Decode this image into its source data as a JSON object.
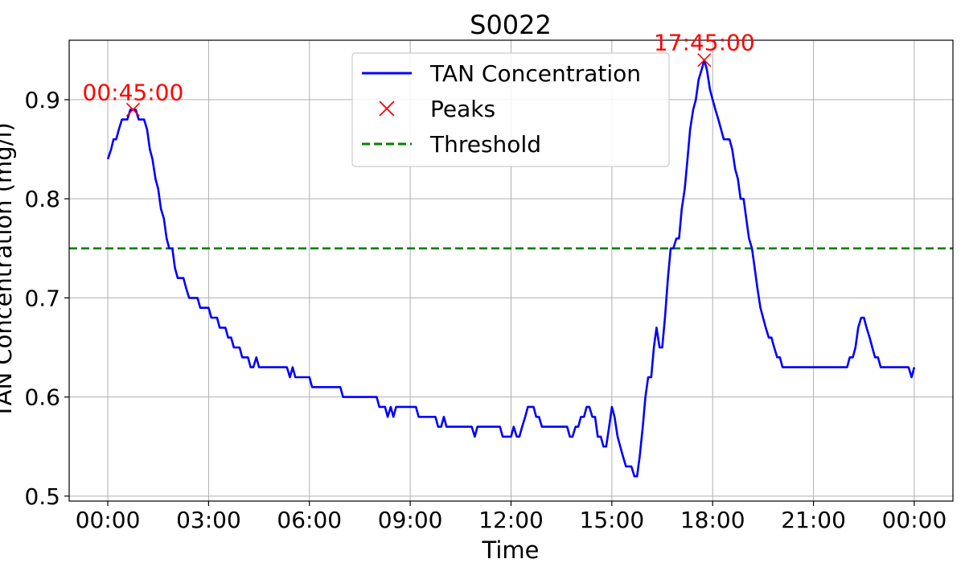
{
  "chart_data": {
    "type": "line",
    "title": "S0022",
    "xlabel": "Time",
    "ylabel": "TAN Concentration (mg/l)",
    "xlim_hours": [
      -1.15,
      25.15
    ],
    "ylim": [
      0.495,
      0.96
    ],
    "x_ticks": [
      {
        "hour": 0,
        "label": "00:00"
      },
      {
        "hour": 3,
        "label": "03:00"
      },
      {
        "hour": 6,
        "label": "06:00"
      },
      {
        "hour": 9,
        "label": "09:00"
      },
      {
        "hour": 12,
        "label": "12:00"
      },
      {
        "hour": 15,
        "label": "15:00"
      },
      {
        "hour": 18,
        "label": "18:00"
      },
      {
        "hour": 21,
        "label": "21:00"
      },
      {
        "hour": 24,
        "label": "00:00"
      }
    ],
    "y_ticks": [
      {
        "value": 0.5,
        "label": "0.5"
      },
      {
        "value": 0.6,
        "label": "0.6"
      },
      {
        "value": 0.7,
        "label": "0.7"
      },
      {
        "value": 0.8,
        "label": "0.8"
      },
      {
        "value": 0.9,
        "label": "0.9"
      }
    ],
    "grid": true,
    "legend": {
      "placement": "upper-center",
      "entries": [
        {
          "label": "TAN Concentration",
          "style": "line",
          "color": "#0000ff"
        },
        {
          "label": "Peaks",
          "style": "x-marker",
          "color": "#ff0000"
        },
        {
          "label": "Threshold",
          "style": "dashed-line",
          "color": "#008000"
        }
      ]
    },
    "series": [
      {
        "name": "TAN Concentration",
        "color": "#0000ff",
        "points": [
          [
            0.0,
            0.84
          ],
          [
            0.1,
            0.85
          ],
          [
            0.17,
            0.86
          ],
          [
            0.25,
            0.86
          ],
          [
            0.33,
            0.87
          ],
          [
            0.42,
            0.88
          ],
          [
            0.58,
            0.88
          ],
          [
            0.67,
            0.89
          ],
          [
            0.83,
            0.89
          ],
          [
            0.92,
            0.88
          ],
          [
            1.08,
            0.88
          ],
          [
            1.17,
            0.87
          ],
          [
            1.25,
            0.85
          ],
          [
            1.33,
            0.84
          ],
          [
            1.42,
            0.82
          ],
          [
            1.5,
            0.81
          ],
          [
            1.58,
            0.79
          ],
          [
            1.67,
            0.78
          ],
          [
            1.75,
            0.76
          ],
          [
            1.83,
            0.75
          ],
          [
            1.92,
            0.75
          ],
          [
            2.0,
            0.73
          ],
          [
            2.08,
            0.72
          ],
          [
            2.25,
            0.72
          ],
          [
            2.33,
            0.71
          ],
          [
            2.42,
            0.7
          ],
          [
            2.67,
            0.7
          ],
          [
            2.75,
            0.69
          ],
          [
            3.0,
            0.69
          ],
          [
            3.08,
            0.68
          ],
          [
            3.25,
            0.68
          ],
          [
            3.33,
            0.67
          ],
          [
            3.5,
            0.67
          ],
          [
            3.58,
            0.66
          ],
          [
            3.67,
            0.66
          ],
          [
            3.75,
            0.65
          ],
          [
            3.92,
            0.65
          ],
          [
            4.0,
            0.64
          ],
          [
            4.17,
            0.64
          ],
          [
            4.25,
            0.63
          ],
          [
            4.33,
            0.63
          ],
          [
            4.42,
            0.64
          ],
          [
            4.5,
            0.63
          ],
          [
            5.33,
            0.63
          ],
          [
            5.42,
            0.62
          ],
          [
            5.5,
            0.63
          ],
          [
            5.58,
            0.62
          ],
          [
            6.0,
            0.62
          ],
          [
            6.08,
            0.61
          ],
          [
            6.92,
            0.61
          ],
          [
            7.0,
            0.6
          ],
          [
            8.0,
            0.6
          ],
          [
            8.08,
            0.59
          ],
          [
            8.25,
            0.59
          ],
          [
            8.33,
            0.58
          ],
          [
            8.42,
            0.59
          ],
          [
            8.5,
            0.58
          ],
          [
            8.58,
            0.59
          ],
          [
            9.17,
            0.59
          ],
          [
            9.25,
            0.58
          ],
          [
            9.75,
            0.58
          ],
          [
            9.83,
            0.57
          ],
          [
            9.92,
            0.57
          ],
          [
            10.0,
            0.58
          ],
          [
            10.08,
            0.57
          ],
          [
            10.83,
            0.57
          ],
          [
            10.92,
            0.56
          ],
          [
            11.0,
            0.57
          ],
          [
            11.67,
            0.57
          ],
          [
            11.75,
            0.56
          ],
          [
            12.0,
            0.56
          ],
          [
            12.08,
            0.57
          ],
          [
            12.17,
            0.56
          ],
          [
            12.25,
            0.56
          ],
          [
            12.33,
            0.57
          ],
          [
            12.42,
            0.58
          ],
          [
            12.5,
            0.59
          ],
          [
            12.67,
            0.59
          ],
          [
            12.75,
            0.58
          ],
          [
            12.83,
            0.58
          ],
          [
            12.92,
            0.57
          ],
          [
            13.67,
            0.57
          ],
          [
            13.75,
            0.56
          ],
          [
            13.83,
            0.56
          ],
          [
            13.92,
            0.57
          ],
          [
            14.0,
            0.57
          ],
          [
            14.08,
            0.58
          ],
          [
            14.17,
            0.58
          ],
          [
            14.25,
            0.59
          ],
          [
            14.33,
            0.59
          ],
          [
            14.42,
            0.58
          ],
          [
            14.5,
            0.58
          ],
          [
            14.58,
            0.56
          ],
          [
            14.67,
            0.56
          ],
          [
            14.75,
            0.55
          ],
          [
            14.83,
            0.55
          ],
          [
            14.92,
            0.57
          ],
          [
            15.0,
            0.59
          ],
          [
            15.08,
            0.58
          ],
          [
            15.17,
            0.56
          ],
          [
            15.25,
            0.55
          ],
          [
            15.33,
            0.54
          ],
          [
            15.42,
            0.53
          ],
          [
            15.58,
            0.53
          ],
          [
            15.67,
            0.52
          ],
          [
            15.75,
            0.52
          ],
          [
            15.83,
            0.54
          ],
          [
            15.92,
            0.57
          ],
          [
            16.0,
            0.6
          ],
          [
            16.08,
            0.62
          ],
          [
            16.17,
            0.62
          ],
          [
            16.25,
            0.65
          ],
          [
            16.33,
            0.67
          ],
          [
            16.42,
            0.65
          ],
          [
            16.5,
            0.65
          ],
          [
            16.58,
            0.68
          ],
          [
            16.67,
            0.72
          ],
          [
            16.75,
            0.75
          ],
          [
            16.83,
            0.75
          ],
          [
            16.92,
            0.76
          ],
          [
            17.0,
            0.76
          ],
          [
            17.08,
            0.79
          ],
          [
            17.17,
            0.81
          ],
          [
            17.25,
            0.84
          ],
          [
            17.33,
            0.87
          ],
          [
            17.42,
            0.89
          ],
          [
            17.5,
            0.9
          ],
          [
            17.58,
            0.92
          ],
          [
            17.67,
            0.93
          ],
          [
            17.75,
            0.94
          ],
          [
            17.83,
            0.93
          ],
          [
            17.92,
            0.91
          ],
          [
            18.0,
            0.9
          ],
          [
            18.08,
            0.89
          ],
          [
            18.17,
            0.88
          ],
          [
            18.25,
            0.87
          ],
          [
            18.33,
            0.86
          ],
          [
            18.5,
            0.86
          ],
          [
            18.58,
            0.85
          ],
          [
            18.67,
            0.83
          ],
          [
            18.75,
            0.82
          ],
          [
            18.83,
            0.8
          ],
          [
            18.92,
            0.8
          ],
          [
            19.0,
            0.78
          ],
          [
            19.08,
            0.76
          ],
          [
            19.17,
            0.75
          ],
          [
            19.25,
            0.73
          ],
          [
            19.33,
            0.71
          ],
          [
            19.42,
            0.69
          ],
          [
            19.5,
            0.68
          ],
          [
            19.58,
            0.67
          ],
          [
            19.67,
            0.66
          ],
          [
            19.75,
            0.66
          ],
          [
            19.83,
            0.65
          ],
          [
            19.92,
            0.64
          ],
          [
            20.0,
            0.64
          ],
          [
            20.08,
            0.63
          ],
          [
            22.0,
            0.63
          ],
          [
            22.08,
            0.64
          ],
          [
            22.17,
            0.64
          ],
          [
            22.25,
            0.65
          ],
          [
            22.33,
            0.67
          ],
          [
            22.42,
            0.68
          ],
          [
            22.5,
            0.68
          ],
          [
            22.58,
            0.67
          ],
          [
            22.67,
            0.66
          ],
          [
            22.75,
            0.65
          ],
          [
            22.83,
            0.64
          ],
          [
            22.92,
            0.64
          ],
          [
            23.0,
            0.63
          ],
          [
            23.83,
            0.63
          ],
          [
            23.92,
            0.62
          ],
          [
            24.0,
            0.63
          ]
        ]
      }
    ],
    "threshold": {
      "name": "Threshold",
      "value": 0.75,
      "color": "#008000"
    },
    "peaks": [
      {
        "hour": 0.75,
        "value": 0.89,
        "label": "00:45:00"
      },
      {
        "hour": 17.75,
        "value": 0.94,
        "label": "17:45:00"
      }
    ],
    "peak_color": "#ff0000"
  }
}
